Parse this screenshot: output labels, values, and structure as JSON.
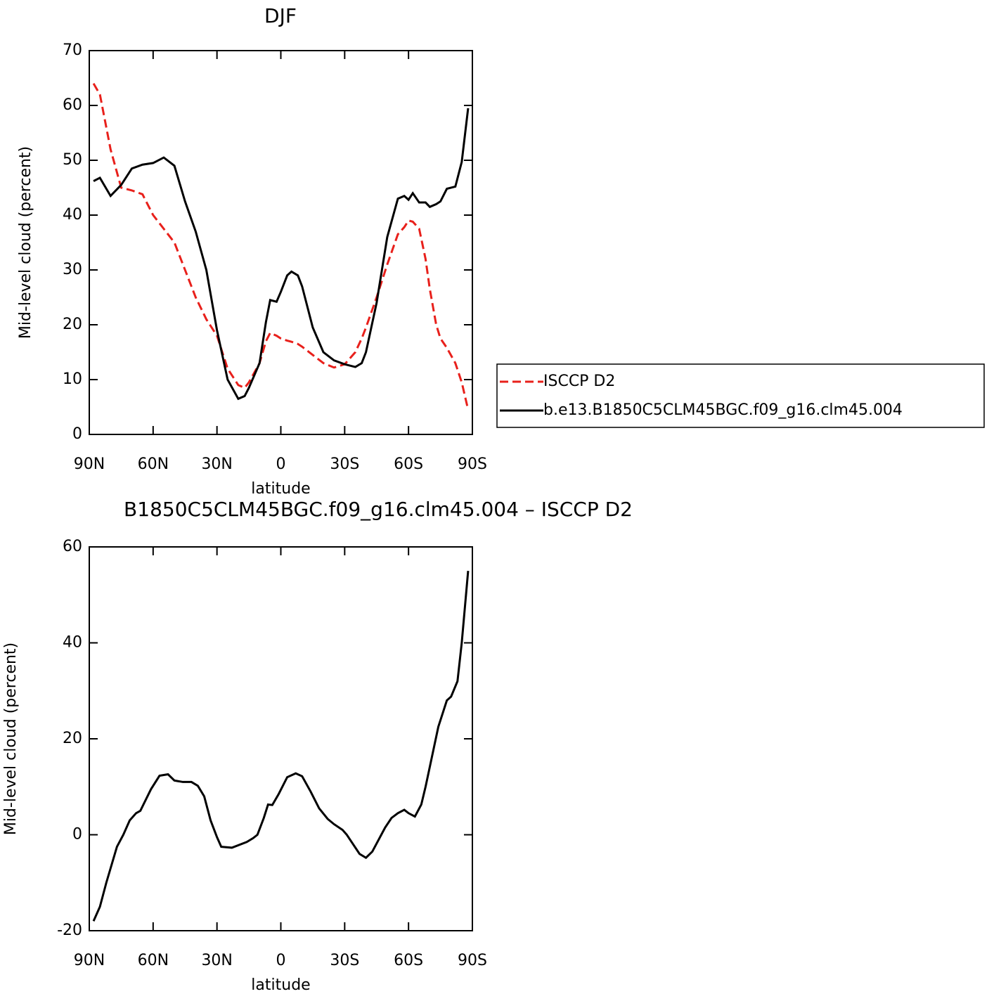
{
  "chart_data": [
    {
      "type": "line",
      "title": "DJF",
      "ylabel": "Mid-level cloud (percent)",
      "xlabel": "latitude",
      "xlim": [
        90,
        -90
      ],
      "xticks": [
        {
          "value": 90,
          "label": "90N"
        },
        {
          "value": 60,
          "label": "60N"
        },
        {
          "value": 30,
          "label": "30N"
        },
        0,
        {
          "value": -30,
          "label": "30S"
        },
        {
          "value": -60,
          "label": "60S"
        },
        {
          "value": -90,
          "label": "90S"
        }
      ],
      "ylim": [
        0,
        70
      ],
      "yticks": [
        0,
        10,
        20,
        30,
        40,
        50,
        60,
        70
      ],
      "legend": "right",
      "x": [
        88,
        85,
        80,
        75,
        70,
        65,
        60,
        55,
        50,
        45,
        40,
        35,
        30,
        25,
        20,
        17,
        15,
        10,
        7,
        5,
        2,
        0,
        -3,
        -5,
        -8,
        -10,
        -15,
        -20,
        -25,
        -30,
        -35,
        -38,
        -40,
        -45,
        -50,
        -55,
        -58,
        -60,
        -62,
        -65,
        -68,
        -70,
        -73,
        -75,
        -78,
        -82,
        -85,
        -88
      ],
      "series": [
        {
          "name": "ISCCP D2",
          "color": "#e8201b",
          "style": "dashed",
          "values": [
            64,
            62,
            52,
            45,
            44.5,
            43.8,
            40,
            37.5,
            35,
            30,
            25,
            21,
            18,
            12,
            9,
            8.5,
            9.5,
            13,
            17,
            18.5,
            18,
            17.5,
            17.1,
            16.9,
            16.5,
            16,
            14.5,
            13,
            12.2,
            12.8,
            15,
            17.5,
            19.5,
            25,
            31,
            36.5,
            37.8,
            39,
            38.8,
            37.5,
            32,
            26.5,
            20,
            17.5,
            15.8,
            13,
            9.5,
            4.5
          ]
        },
        {
          "name": "b.e13.B1850C5CLM45BGC.f09_g16.clm45.004",
          "color": "#000000",
          "style": "solid",
          "values": [
            46.2,
            46.8,
            43.5,
            45.5,
            48.5,
            49.2,
            49.5,
            50.5,
            49,
            42.5,
            37,
            30,
            19,
            10,
            6.5,
            7,
            8.5,
            13,
            20.5,
            24.5,
            24.2,
            26,
            29,
            29.7,
            29,
            27,
            19.5,
            15,
            13.5,
            12.8,
            12.3,
            13,
            15,
            24,
            36,
            43,
            43.5,
            42.8,
            44,
            42.3,
            42.3,
            41.5,
            42,
            42.5,
            44.8,
            45.2,
            49.7,
            59.5
          ]
        }
      ]
    },
    {
      "type": "line",
      "title": "B1850C5CLM45BGC.f09_g16.clm45.004 – ISCCP D2",
      "ylabel": "Mid-level cloud (percent)",
      "xlabel": "latitude",
      "xlim": [
        90,
        -90
      ],
      "xticks": [
        {
          "value": 90,
          "label": "90N"
        },
        {
          "value": 60,
          "label": "60N"
        },
        {
          "value": 30,
          "label": "30N"
        },
        0,
        {
          "value": -30,
          "label": "30S"
        },
        {
          "value": -60,
          "label": "60S"
        },
        {
          "value": -90,
          "label": "90S"
        }
      ],
      "ylim": [
        -20,
        60
      ],
      "yticks": [
        -20,
        0,
        20,
        40,
        60
      ],
      "x": [
        88,
        85,
        82,
        77,
        74,
        71,
        68,
        66,
        61,
        57,
        53,
        50,
        46,
        42,
        39,
        36,
        33,
        30,
        28,
        23,
        16,
        13,
        11,
        8,
        6,
        4,
        1,
        -3,
        -7,
        -10,
        -14,
        -18,
        -22,
        -25,
        -29,
        -31,
        -34,
        -37,
        -40,
        -43,
        -49,
        -52,
        -55,
        -58,
        -60,
        -63,
        -66,
        -68,
        -74,
        -78,
        -80,
        -83,
        -85,
        -88
      ],
      "series": [
        {
          "color": "#000000",
          "style": "solid",
          "values": [
            -18,
            -15,
            -10,
            -2.5,
            0,
            3,
            4.5,
            5,
            9.5,
            12.3,
            12.6,
            11.3,
            11,
            11,
            10.2,
            8,
            3,
            -0.5,
            -2.5,
            -2.7,
            -1.5,
            -0.7,
            0,
            3.5,
            6.3,
            6.2,
            8.5,
            12,
            12.8,
            12.2,
            9,
            5.5,
            3.3,
            2.2,
            1,
            0,
            -2,
            -4,
            -4.8,
            -3.5,
            1.5,
            3.5,
            4.5,
            5.2,
            4.5,
            3.8,
            6.3,
            10,
            22.5,
            28,
            28.8,
            32,
            40,
            55
          ]
        }
      ]
    }
  ]
}
